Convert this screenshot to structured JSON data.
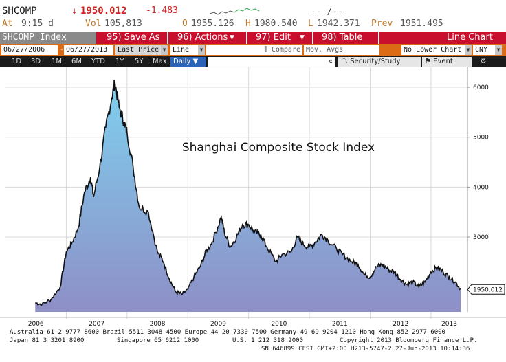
{
  "quote": {
    "ticker": "SHCOMP",
    "arrow": "↓",
    "last": "1950.012",
    "change": "-1.483",
    "at_label": "At",
    "time": "9:15 d",
    "vol_label": "Vol",
    "volume": "105,813",
    "open_label": "O",
    "open": "1955.126",
    "high_label": "H",
    "high": "1980.540",
    "low_label": "L",
    "low": "1942.371",
    "prev_label": "Prev",
    "prev": "1951.495",
    "bid_ask": "-- /--"
  },
  "menu": {
    "title": "SHCOMP Index",
    "save": "95) Save As",
    "actions": "96) Actions",
    "edit": "97) Edit",
    "table": "98) Table",
    "chart_type": "Line Chart"
  },
  "controls": {
    "start_date": "06/27/2006",
    "end_date": "06/27/2013",
    "field": "Last Price",
    "style": "Line",
    "compare": "Compare",
    "mov_avgs": "Mov. Avgs",
    "lower_chart": "No Lower Chart",
    "currency": "CNY"
  },
  "periods": [
    "1D",
    "3D",
    "1M",
    "6M",
    "YTD",
    "1Y",
    "5Y",
    "Max"
  ],
  "frequency": "Daily",
  "security_study": "Security/Study",
  "event": "Event",
  "chart_data": {
    "type": "area",
    "title": "Shanghai Composite Stock Index",
    "x_ticks": [
      "2006",
      "2007",
      "2008",
      "2009",
      "2010",
      "2011",
      "2012",
      "2013"
    ],
    "y_ticks": [
      3000,
      4000,
      5000,
      6000
    ],
    "ylim": [
      1500,
      6400
    ],
    "last_value_label": "1950.012",
    "grid": true,
    "x": [
      2006.49,
      2006.6,
      2006.75,
      2006.9,
      2007.0,
      2007.1,
      2007.2,
      2007.3,
      2007.4,
      2007.45,
      2007.55,
      2007.65,
      2007.75,
      2007.8,
      2007.87,
      2007.95,
      2008.0,
      2008.1,
      2008.2,
      2008.35,
      2008.5,
      2008.6,
      2008.7,
      2008.8,
      2008.9,
      2009.0,
      2009.1,
      2009.2,
      2009.3,
      2009.4,
      2009.55,
      2009.6,
      2009.7,
      2009.8,
      2009.9,
      2010.0,
      2010.1,
      2010.2,
      2010.3,
      2010.45,
      2010.55,
      2010.7,
      2010.8,
      2010.9,
      2011.0,
      2011.1,
      2011.2,
      2011.3,
      2011.45,
      2011.55,
      2011.7,
      2011.8,
      2011.9,
      2012.0,
      2012.1,
      2012.2,
      2012.3,
      2012.4,
      2012.5,
      2012.6,
      2012.7,
      2012.8,
      2012.9,
      2013.0,
      2013.1,
      2013.2,
      2013.3,
      2013.4,
      2013.49
    ],
    "y": [
      1680,
      1650,
      1750,
      2000,
      2700,
      2900,
      3200,
      3900,
      4200,
      3800,
      4400,
      5200,
      5800,
      6100,
      5600,
      5300,
      5100,
      4400,
      3600,
      3500,
      2700,
      2500,
      2150,
      1900,
      1850,
      1950,
      2200,
      2400,
      2700,
      2900,
      3400,
      3100,
      2800,
      3000,
      3250,
      3250,
      3100,
      3050,
      2800,
      2500,
      2650,
      2700,
      3000,
      2850,
      2800,
      2900,
      3050,
      2950,
      2750,
      2650,
      2500,
      2450,
      2250,
      2200,
      2400,
      2450,
      2350,
      2300,
      2150,
      2050,
      2100,
      2000,
      2100,
      2300,
      2400,
      2300,
      2200,
      2100,
      1950
    ]
  },
  "footer": {
    "line1": "Australia 61 2 9777 8600 Brazil 5511 3048 4500 Europe 44 20 7330 7500 Germany 49 69 9204 1210 Hong Kong 852 2977 6000",
    "line2a": "Japan 81 3 3201 8900",
    "line2b": "Singapore 65 6212 1000",
    "line2c": "U.S. 1 212 318 2000",
    "line2d": "Copyright 2013 Bloomberg Finance L.P.",
    "line3": "SN 646899 CEST GMT+2:00 H213-5747-2 27-Jun-2013 10:14:36"
  },
  "colors": {
    "menu_red": "#c8102e",
    "ctrl_orange": "#dc6b16",
    "area_top": "#7fd0ef",
    "area_bottom": "#8e8fc6",
    "line": "#111111"
  }
}
